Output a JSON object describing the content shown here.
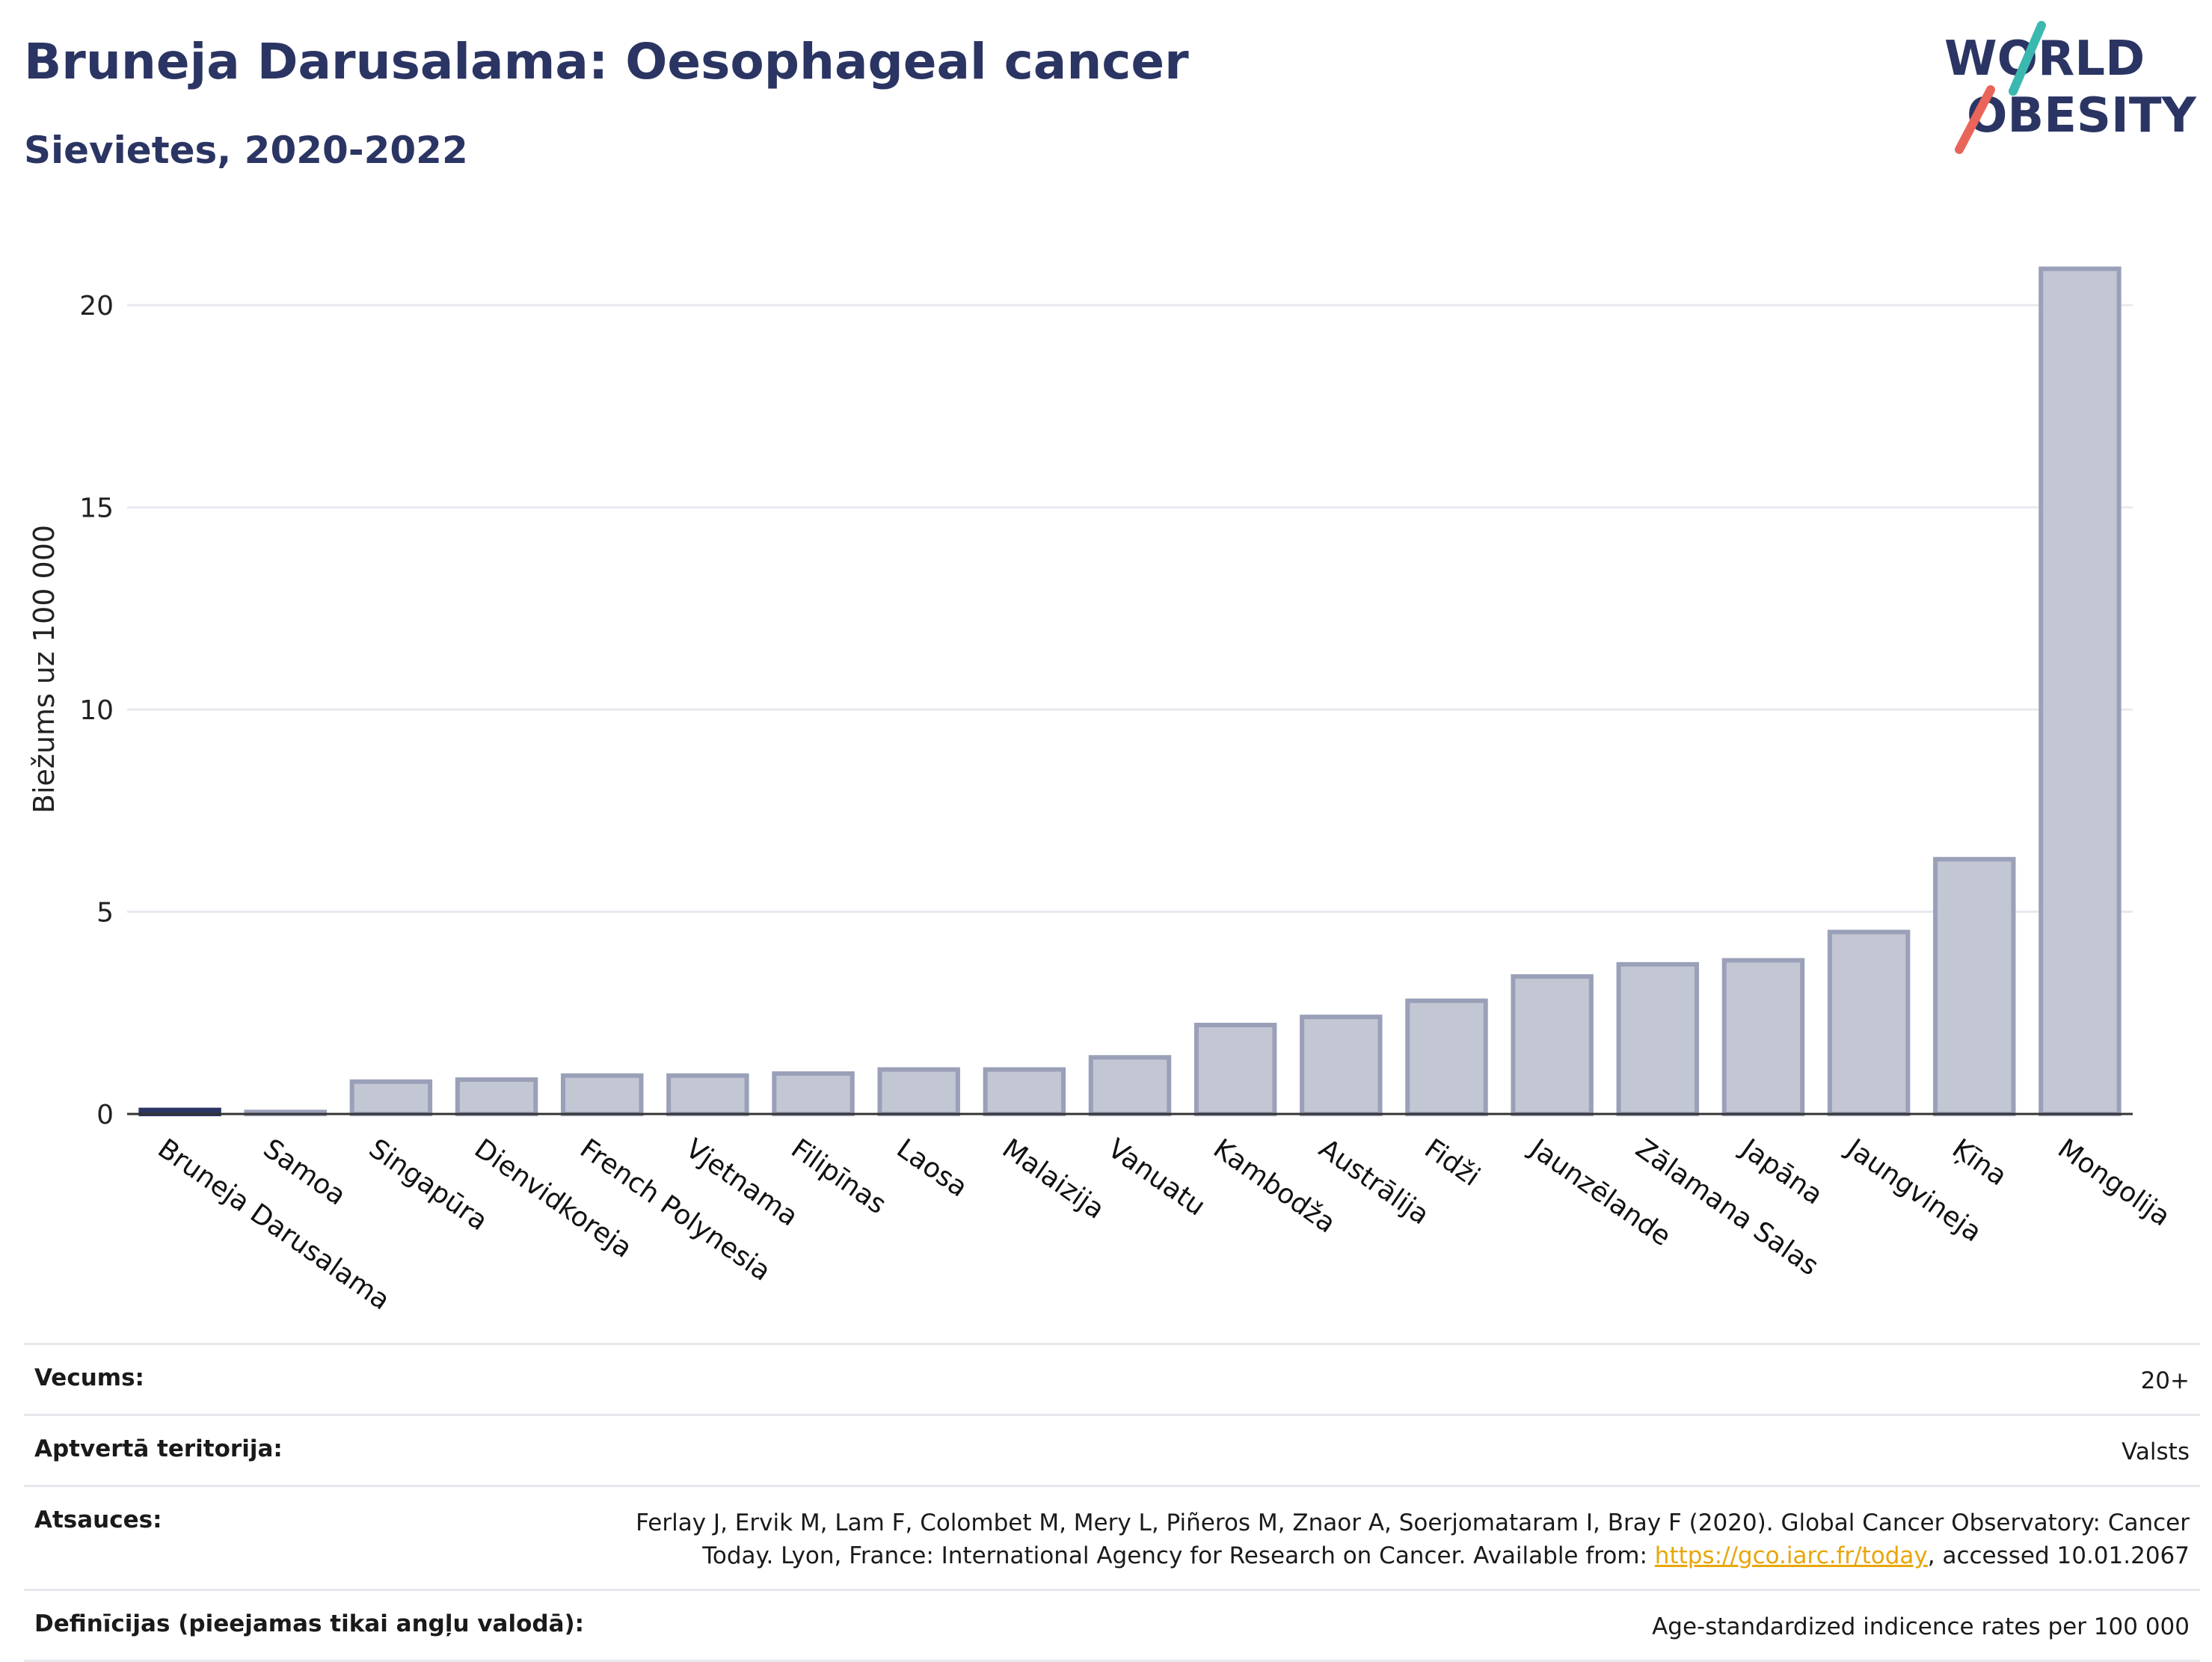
{
  "header": {
    "title": "Bruneja Darusalama: Oesophageal cancer",
    "subtitle": "Sievietes, 2020-2022"
  },
  "logo": {
    "line1": "WORLD",
    "line2": "OBESITY",
    "text_color": "#2b3563",
    "accent_teal": "#3bb8b0",
    "accent_red": "#e9655a"
  },
  "colors": {
    "bar_fill": "#c0c3d1",
    "bar_stroke": "#9aa0b8",
    "highlight": "#2b3563",
    "grid": "#e8e9ef",
    "axis": "#333333"
  },
  "chart_data": {
    "type": "bar",
    "title": "Bruneja Darusalama: Oesophageal cancer",
    "subtitle": "Sievietes, 2020-2022",
    "ylabel": "Biežums uz 100 000",
    "xlabel": "",
    "ylim": [
      0,
      22
    ],
    "yticks": [
      0,
      5,
      10,
      15,
      20
    ],
    "grid": true,
    "highlight_category": "Bruneja Darusalama",
    "categories": [
      "Bruneja Darusalama",
      "Samoa",
      "Singapūra",
      "Dienvidkoreja",
      "French Polynesia",
      "Vjetnama",
      "Filipīnas",
      "Laosa",
      "Malaizija",
      "Vanuatu",
      "Kambodža",
      "Austrālija",
      "Fidži",
      "Jaunzēlande",
      "Zālamana Salas",
      "Japāna",
      "Jaungvineja",
      "Ķīna",
      "Mongolija"
    ],
    "values": [
      0.1,
      0.05,
      0.8,
      0.85,
      0.95,
      0.95,
      1.0,
      1.1,
      1.1,
      1.4,
      2.2,
      2.4,
      2.8,
      3.4,
      3.7,
      3.8,
      4.5,
      6.3,
      20.9
    ]
  },
  "meta": {
    "rows": [
      {
        "label": "Vecums:",
        "value": "20+"
      },
      {
        "label": "Aptvertā teritorija:",
        "value": "Valsts"
      },
      {
        "label": "Atsauces:",
        "value_line1": "Ferlay J, Ervik M, Lam F, Colombet M, Mery L, Piñeros M, Znaor A, Soerjomataram I, Bray F (2020). Global Cancer Observatory: Cancer",
        "value_line2_before": "Today. Lyon, France: International Agency for Research on Cancer. Available from: ",
        "link_text": "https://gco.iarc.fr/today",
        "value_line2_after": ", accessed 10.01.2067"
      },
      {
        "label": "Definīcijas (pieejamas tikai angļu valodā):",
        "value": "Age-standardized indicence rates per 100 000"
      }
    ]
  }
}
